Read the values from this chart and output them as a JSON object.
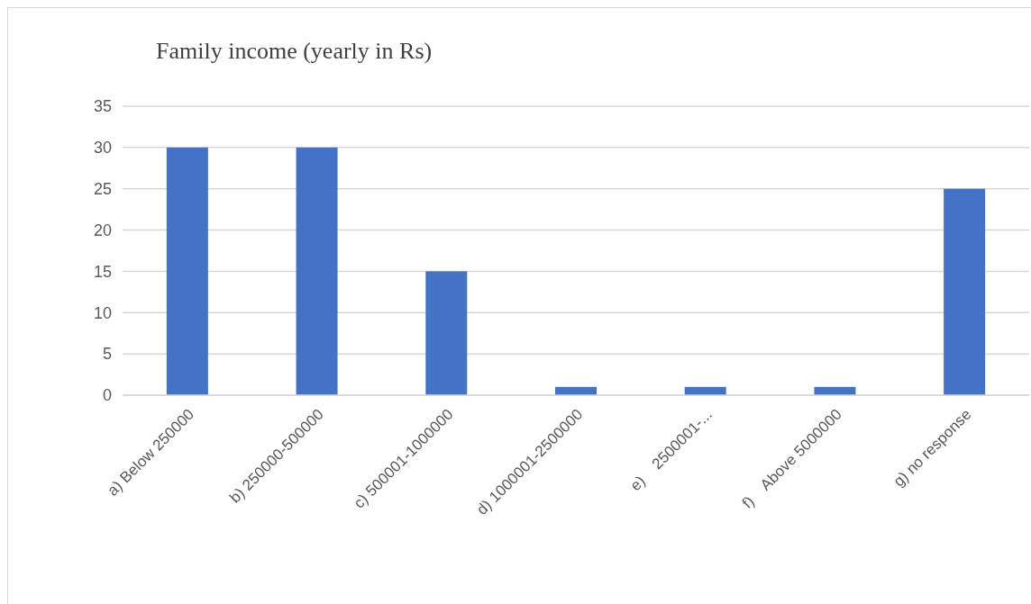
{
  "chart_data": {
    "type": "bar",
    "title": "Family income (yearly in Rs)",
    "categories": [
      "a) Below 250000",
      "b) 250000-500000",
      "c) 500001-1000000",
      "d) 1000001-2500000",
      "e)    2500001-...",
      "f)    Above 5000000",
      "g) no response"
    ],
    "values": [
      30,
      30,
      15,
      1,
      1,
      1,
      25
    ],
    "color": "#4472c4",
    "ylim": [
      0,
      35
    ],
    "yticks": [
      0,
      5,
      10,
      15,
      20,
      25,
      30,
      35
    ],
    "grid": "y"
  }
}
